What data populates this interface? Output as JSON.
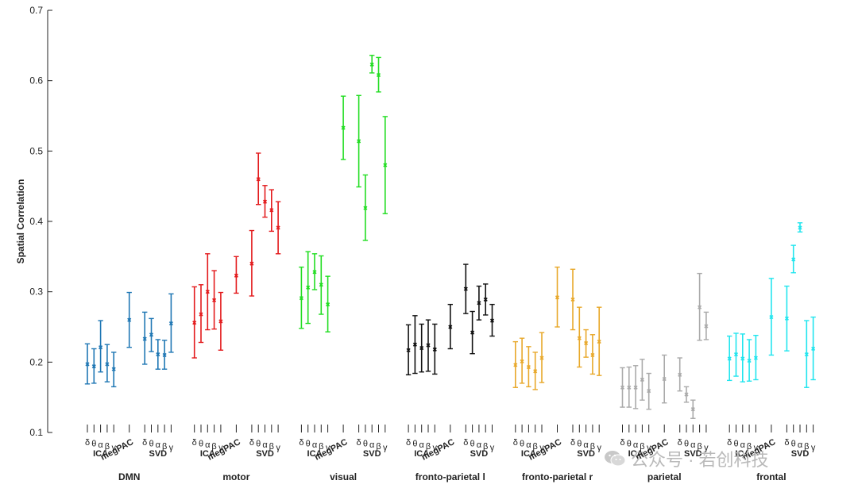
{
  "chart_data": {
    "type": "errorbar",
    "ylabel": "Spatial Correlation",
    "ylim": [
      0.1,
      0.7
    ],
    "yticks": [
      0.1,
      0.2,
      0.3,
      0.4,
      0.5,
      0.6,
      0.7
    ],
    "slot_labels": [
      "δ",
      "θ",
      "α",
      "β",
      "γ",
      "megPAC",
      "δ",
      "θ",
      "α",
      "β",
      "γ"
    ],
    "group_labels": [
      "ICA",
      "SVD"
    ],
    "networks": [
      {
        "name": "DMN",
        "color": "#1f77b4",
        "points": [
          [
            0.197,
            0.169,
            0.226
          ],
          [
            0.194,
            0.17,
            0.219
          ],
          [
            0.221,
            0.186,
            0.259
          ],
          [
            0.197,
            0.172,
            0.225
          ],
          [
            0.19,
            0.165,
            0.214
          ],
          [
            0.26,
            0.221,
            0.299
          ],
          [
            0.233,
            0.197,
            0.271
          ],
          [
            0.239,
            0.215,
            0.262
          ],
          [
            0.211,
            0.19,
            0.232
          ],
          [
            0.21,
            0.19,
            0.231
          ],
          [
            0.255,
            0.214,
            0.297
          ]
        ]
      },
      {
        "name": "motor",
        "color": "#e31a1c",
        "points": [
          [
            0.256,
            0.206,
            0.307
          ],
          [
            0.268,
            0.228,
            0.31
          ],
          [
            0.3,
            0.246,
            0.354
          ],
          [
            0.288,
            0.247,
            0.33
          ],
          [
            0.258,
            0.217,
            0.299
          ],
          [
            0.323,
            0.298,
            0.35
          ],
          [
            0.34,
            0.294,
            0.387
          ],
          [
            0.46,
            0.424,
            0.497
          ],
          [
            0.428,
            0.406,
            0.451
          ],
          [
            0.416,
            0.386,
            0.445
          ],
          [
            0.391,
            0.354,
            0.428
          ]
        ]
      },
      {
        "name": "visual",
        "color": "#22dd22",
        "points": [
          [
            0.291,
            0.248,
            0.335
          ],
          [
            0.306,
            0.255,
            0.357
          ],
          [
            0.328,
            0.303,
            0.354
          ],
          [
            0.31,
            0.268,
            0.351
          ],
          [
            0.282,
            0.243,
            0.322
          ],
          [
            0.533,
            0.488,
            0.578
          ],
          [
            0.514,
            0.449,
            0.579
          ],
          [
            0.419,
            0.373,
            0.466
          ],
          [
            0.623,
            0.611,
            0.636
          ],
          [
            0.608,
            0.584,
            0.633
          ],
          [
            0.48,
            0.411,
            0.549
          ]
        ]
      },
      {
        "name": "fronto-parietal l",
        "color": "#111111",
        "points": [
          [
            0.217,
            0.182,
            0.253
          ],
          [
            0.225,
            0.184,
            0.266
          ],
          [
            0.22,
            0.186,
            0.254
          ],
          [
            0.224,
            0.187,
            0.26
          ],
          [
            0.218,
            0.183,
            0.254
          ],
          [
            0.25,
            0.219,
            0.282
          ],
          [
            0.304,
            0.269,
            0.339
          ],
          [
            0.242,
            0.212,
            0.272
          ],
          [
            0.284,
            0.26,
            0.308
          ],
          [
            0.289,
            0.267,
            0.311
          ],
          [
            0.259,
            0.237,
            0.282
          ]
        ]
      },
      {
        "name": "fronto-parietal r",
        "color": "#e8a82a",
        "points": [
          [
            0.196,
            0.164,
            0.229
          ],
          [
            0.201,
            0.17,
            0.234
          ],
          [
            0.193,
            0.165,
            0.222
          ],
          [
            0.187,
            0.161,
            0.214
          ],
          [
            0.206,
            0.171,
            0.242
          ],
          [
            0.292,
            0.25,
            0.335
          ],
          [
            0.289,
            0.246,
            0.332
          ],
          [
            0.234,
            0.193,
            0.278
          ],
          [
            0.227,
            0.207,
            0.246
          ],
          [
            0.21,
            0.183,
            0.239
          ],
          [
            0.229,
            0.181,
            0.278
          ]
        ]
      },
      {
        "name": "parietal",
        "color": "#aaaaaa",
        "points": [
          [
            0.164,
            0.136,
            0.192
          ],
          [
            0.164,
            0.136,
            0.193
          ],
          [
            0.164,
            0.134,
            0.195
          ],
          [
            0.175,
            0.146,
            0.204
          ],
          [
            0.159,
            0.133,
            0.184
          ],
          [
            0.176,
            0.142,
            0.21
          ],
          [
            0.182,
            0.159,
            0.206
          ],
          [
            0.154,
            0.143,
            0.165
          ],
          [
            0.133,
            0.12,
            0.146
          ],
          [
            0.278,
            0.231,
            0.326
          ],
          [
            0.251,
            0.232,
            0.271
          ]
        ]
      },
      {
        "name": "frontal",
        "color": "#22e5ee",
        "points": [
          [
            0.205,
            0.174,
            0.237
          ],
          [
            0.211,
            0.18,
            0.241
          ],
          [
            0.205,
            0.172,
            0.24
          ],
          [
            0.202,
            0.173,
            0.232
          ],
          [
            0.206,
            0.175,
            0.238
          ],
          [
            0.264,
            0.21,
            0.319
          ],
          [
            0.262,
            0.216,
            0.308
          ],
          [
            0.346,
            0.327,
            0.366
          ],
          [
            0.391,
            0.385,
            0.398
          ],
          [
            0.211,
            0.164,
            0.259
          ],
          [
            0.219,
            0.175,
            0.264
          ]
        ]
      }
    ]
  },
  "watermark": {
    "text": "公众号 · 若创科技",
    "icon": "wechat-icon"
  }
}
